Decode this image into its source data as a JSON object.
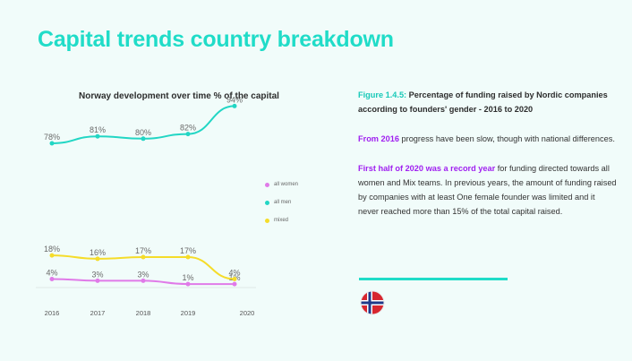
{
  "page": {
    "title": "Capital trends country breakdown"
  },
  "chart_data": {
    "type": "line",
    "title": "Norway development over time % of the capital",
    "categories": [
      "2016",
      "2017",
      "2018",
      "2019",
      "2020"
    ],
    "series": [
      {
        "name": "all women",
        "color": "#e07ae8",
        "values": [
          4,
          3,
          3,
          1,
          1
        ],
        "labels": [
          "4%",
          "3%",
          "3%",
          "1%",
          "1%"
        ]
      },
      {
        "name": "all men",
        "color": "#22d6c4",
        "values": [
          78,
          81,
          80,
          82,
          94
        ],
        "labels": [
          "78%",
          "81%",
          "80%",
          "82%",
          "94%"
        ]
      },
      {
        "name": "mixed",
        "color": "#f5dc2a",
        "values": [
          18,
          16,
          17,
          17,
          4
        ],
        "labels": [
          "18%",
          "16%",
          "17%",
          "17%",
          "4%"
        ]
      }
    ],
    "legend_position": "right",
    "axis_break": true,
    "grid": false
  },
  "panel": {
    "fig_label": "Figure 1.4.5:",
    "fig_caption": " Percentage of funding raised by Nordic companies according to founders' gender - 2016 to 2020",
    "p2_highlight": "From 2016",
    "p2_text": "  progress have been slow, though with national differences.",
    "p3_highlight": "First half of 2020 was a record year",
    "p3_text": "  for funding directed towards all women and Mix teams. In previous years, the amount of funding raised by companies with at least One female founder was limited and it never reached more than 15% of the total capital raised."
  },
  "flag": {
    "icon": "norway-flag-icon",
    "red": "#d7262f",
    "blue": "#1f3a8a",
    "white": "#ffffff"
  }
}
